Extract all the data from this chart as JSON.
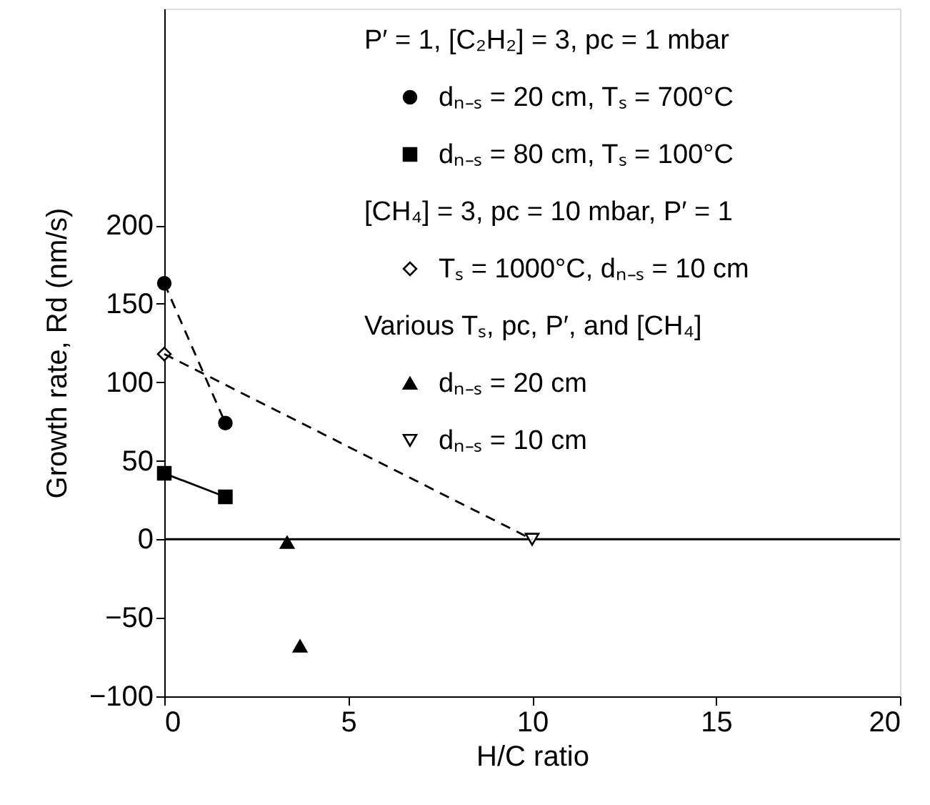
{
  "chart_data": {
    "type": "scatter",
    "xlabel": "H/C ratio",
    "ylabel": "Growth rate, Rd (nm/s)",
    "xlim": [
      0,
      20
    ],
    "xticks": [
      0,
      5,
      10,
      15,
      20
    ],
    "ylim": [
      -100,
      338
    ],
    "yticks": [
      -100,
      -50,
      0,
      50,
      100,
      150,
      200
    ],
    "grid": false,
    "legend": "top right",
    "annotations": [
      "P′ = 1, [C₂H₂] = 3, pc = 1 mbar",
      "[CH₄] = 3, pc = 10 mbar, P′ = 1",
      "Various Tₛ, pc, P′, and [CH₄]"
    ],
    "ref_lines": [
      {
        "axis": "y",
        "value": 0,
        "color": "#000000",
        "line_style": "solid"
      }
    ],
    "series": [
      {
        "name": "dₙ₋ₛ = 20 cm, Tₛ = 700°C",
        "type": "line",
        "marker": "circle",
        "line_style": "dashed",
        "color": "#000000",
        "x": [
          0,
          1.66
        ],
        "values": [
          163,
          74
        ]
      },
      {
        "name": "dₙ₋ₛ = 80 cm, Tₛ = 100°C",
        "type": "line",
        "marker": "square",
        "line_style": "solid",
        "color": "#000000",
        "x": [
          0,
          1.66
        ],
        "values": [
          42,
          27
        ]
      },
      {
        "name": "Tₛ = 1000°C, dₙ₋ₛ = 10 cm",
        "marker": "diamond",
        "color": "#ffffff",
        "x": [
          0
        ],
        "values": [
          118
        ]
      },
      {
        "name": "dₙ₋ₛ = 20 cm",
        "marker": "triangle",
        "color": "#000000",
        "x": [
          3.34,
          3.69
        ],
        "values": [
          -2,
          -68
        ]
      },
      {
        "name": "dₙ₋ₛ = 10 cm",
        "marker": "triangle-down",
        "color": "#ffffff",
        "x": [
          10
        ],
        "values": [
          0
        ]
      },
      {
        "type": "line",
        "marker": "none",
        "line_style": "dashed",
        "color": "#000000",
        "x": [
          0,
          10
        ],
        "values": [
          118,
          0
        ]
      }
    ]
  }
}
